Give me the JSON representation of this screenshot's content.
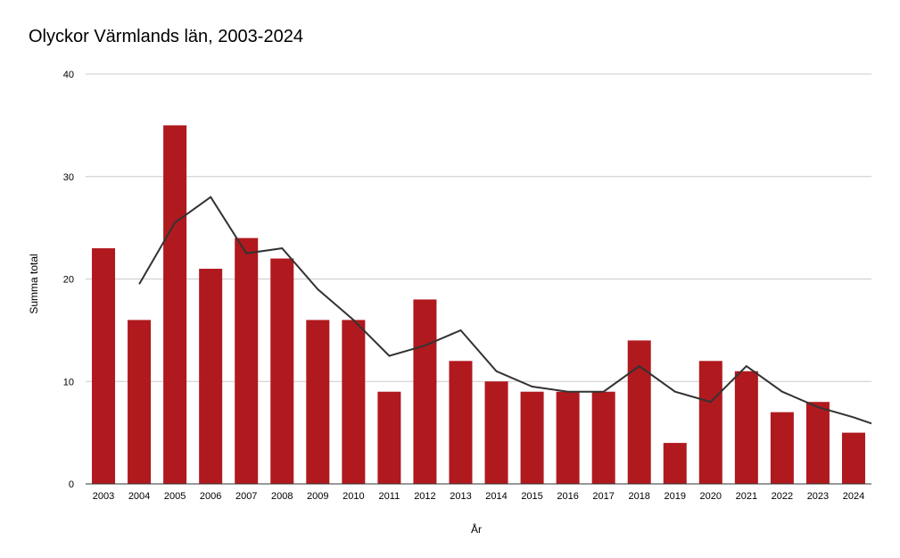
{
  "chart_data": {
    "type": "bar",
    "title": "Olyckor Värmlands län, 2003-2024",
    "xlabel": "År",
    "ylabel": "Summa total",
    "ylim": [
      0,
      40
    ],
    "yticks": [
      "0",
      "10",
      "20",
      "30",
      "40"
    ],
    "grid": true,
    "legend": "none",
    "categories": [
      "2003",
      "2004",
      "2005",
      "2006",
      "2007",
      "2008",
      "2009",
      "2010",
      "2011",
      "2012",
      "2013",
      "2014",
      "2015",
      "2016",
      "2017",
      "2018",
      "2019",
      "2020",
      "2021",
      "2022",
      "2023",
      "2024"
    ],
    "values": [
      23,
      16,
      35,
      21,
      24,
      22,
      16,
      16,
      9,
      18,
      12,
      10,
      9,
      9,
      9,
      14,
      4,
      12,
      11,
      7,
      8,
      5
    ],
    "trendline": {
      "type": "line",
      "values": [
        null,
        19.5,
        25.5,
        28,
        22.5,
        23,
        19,
        16,
        12.5,
        13.5,
        15,
        11,
        9.5,
        9,
        9,
        11.5,
        9,
        8,
        11.5,
        9,
        7.5,
        6.5
      ]
    },
    "colors": {
      "bar": "#b0191e",
      "line": "#333333",
      "grid": "#cccccc",
      "axis": "#333333"
    }
  }
}
